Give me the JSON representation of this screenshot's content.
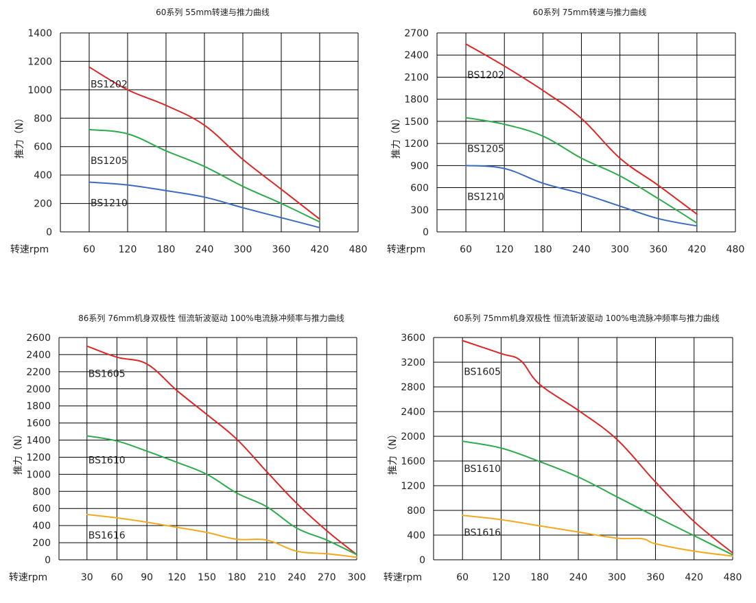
{
  "chart_data": [
    {
      "type": "line",
      "title": "60系列 55mm转速与推力曲线",
      "xlabel": "转速rpm",
      "ylabel": "推力（N）",
      "x_ticks": [
        60,
        120,
        180,
        240,
        300,
        360,
        420,
        480
      ],
      "y_ticks": [
        0,
        200,
        400,
        600,
        800,
        1000,
        1200,
        1400
      ],
      "xlim": [
        15,
        480
      ],
      "ylim": [
        0,
        1400
      ],
      "grid": true,
      "series": [
        {
          "name": "BS1202",
          "color": "#e02424",
          "x": [
            60,
            120,
            180,
            240,
            300,
            360,
            420
          ],
          "y": [
            1160,
            1000,
            890,
            750,
            510,
            300,
            90
          ]
        },
        {
          "name": "BS1205",
          "color": "#2bab49",
          "x": [
            60,
            120,
            180,
            240,
            300,
            360,
            420
          ],
          "y": [
            720,
            690,
            570,
            460,
            320,
            200,
            70
          ]
        },
        {
          "name": "BS1210",
          "color": "#3a6bc0",
          "x": [
            60,
            120,
            180,
            240,
            300,
            360,
            420
          ],
          "y": [
            350,
            330,
            290,
            245,
            170,
            100,
            30
          ]
        }
      ]
    },
    {
      "type": "line",
      "title": "60系列 75mm转速与推力曲线",
      "xlabel": "转速rpm",
      "ylabel": "推力（N）",
      "x_ticks": [
        60,
        120,
        180,
        240,
        300,
        360,
        420,
        480
      ],
      "y_ticks": [
        0,
        300,
        600,
        900,
        1200,
        1500,
        1800,
        2100,
        2400,
        2700
      ],
      "xlim": [
        15,
        480
      ],
      "ylim": [
        0,
        2700
      ],
      "grid": true,
      "series": [
        {
          "name": "BS1202",
          "color": "#e02424",
          "x": [
            60,
            120,
            180,
            240,
            300,
            360,
            420
          ],
          "y": [
            2550,
            2250,
            1920,
            1540,
            1000,
            630,
            240
          ]
        },
        {
          "name": "BS1205",
          "color": "#2bab49",
          "x": [
            60,
            120,
            180,
            240,
            300,
            360,
            420
          ],
          "y": [
            1550,
            1460,
            1300,
            1000,
            760,
            450,
            120
          ]
        },
        {
          "name": "BS1210",
          "color": "#3a6bc0",
          "x": [
            60,
            120,
            180,
            240,
            300,
            360,
            420
          ],
          "y": [
            900,
            860,
            660,
            520,
            350,
            180,
            80
          ]
        }
      ]
    },
    {
      "type": "line",
      "title": "86系列 76mm机身双极性 恒流斩波驱动 100%电流脉冲频率与推力曲线",
      "xlabel": "转速rpm",
      "ylabel": "推力（N）",
      "x_ticks": [
        30,
        60,
        90,
        120,
        150,
        180,
        210,
        240,
        270,
        300
      ],
      "y_ticks": [
        0,
        200,
        400,
        600,
        800,
        1000,
        1200,
        1400,
        1600,
        1800,
        2000,
        2200,
        2400,
        2600
      ],
      "xlim": [
        2,
        300
      ],
      "ylim": [
        0,
        2600
      ],
      "grid": true,
      "series": [
        {
          "name": "BS1605",
          "color": "#e02424",
          "x": [
            30,
            60,
            90,
            120,
            150,
            180,
            210,
            240,
            270,
            300
          ],
          "y": [
            2500,
            2370,
            2290,
            1980,
            1700,
            1410,
            1030,
            660,
            340,
            60
          ]
        },
        {
          "name": "BS1610",
          "color": "#2bab49",
          "x": [
            30,
            60,
            90,
            120,
            150,
            180,
            210,
            240,
            270,
            300
          ],
          "y": [
            1450,
            1390,
            1270,
            1140,
            1000,
            780,
            620,
            370,
            230,
            60
          ]
        },
        {
          "name": "BS1616",
          "color": "#f2a91e",
          "x": [
            30,
            60,
            90,
            120,
            150,
            180,
            210,
            240,
            270,
            300
          ],
          "y": [
            530,
            490,
            440,
            380,
            320,
            240,
            230,
            100,
            70,
            30
          ]
        }
      ]
    },
    {
      "type": "line",
      "title": "60系列 75mm机身双极性 恒流斩波驱动 100%电流脉冲频率与推力曲线",
      "xlabel": "转速rpm",
      "ylabel": "推力（N）",
      "x_ticks": [
        60,
        120,
        180,
        240,
        300,
        360,
        420,
        480
      ],
      "y_ticks": [
        0,
        400,
        800,
        1200,
        1600,
        2000,
        2400,
        2800,
        3200,
        3600
      ],
      "xlim": [
        15,
        480
      ],
      "ylim": [
        0,
        3600
      ],
      "grid": true,
      "series": [
        {
          "name": "BS1605",
          "color": "#e02424",
          "x": [
            60,
            120,
            150,
            180,
            240,
            300,
            360,
            420,
            480
          ],
          "y": [
            3550,
            3340,
            3230,
            2840,
            2420,
            1950,
            1260,
            620,
            110
          ]
        },
        {
          "name": "BS1610",
          "color": "#2bab49",
          "x": [
            60,
            120,
            180,
            240,
            300,
            360,
            420,
            480
          ],
          "y": [
            1920,
            1810,
            1590,
            1340,
            1020,
            700,
            390,
            80
          ]
        },
        {
          "name": "BS1616",
          "color": "#f2a91e",
          "x": [
            60,
            120,
            180,
            240,
            300,
            340,
            360,
            420,
            480
          ],
          "y": [
            720,
            650,
            550,
            450,
            350,
            340,
            260,
            140,
            60
          ]
        }
      ]
    }
  ]
}
